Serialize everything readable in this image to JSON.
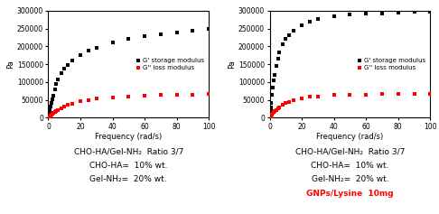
{
  "chart_data": [
    {
      "type": "scatter",
      "x_label": "Frequency (rad/s)",
      "y_label": "Pa",
      "x": [
        0.1,
        0.2,
        0.3,
        0.5,
        0.7,
        1.0,
        1.5,
        2.0,
        2.5,
        3.0,
        4.0,
        5.0,
        6.0,
        8.0,
        10,
        12,
        15,
        20,
        25,
        30,
        40,
        50,
        60,
        70,
        80,
        90,
        100
      ],
      "series": [
        {
          "name": "G' storage modulus",
          "color": "black",
          "marker": "square",
          "values": [
            2000,
            4000,
            6000,
            10000,
            14000,
            20000,
            32000,
            42000,
            52000,
            62000,
            80000,
            95000,
            108000,
            125000,
            138000,
            148000,
            160000,
            175000,
            188000,
            197000,
            210000,
            220000,
            228000,
            233000,
            240000,
            245000,
            248000
          ]
        },
        {
          "name": "G'' loss modulus",
          "color": "red",
          "marker": "square",
          "values": [
            500,
            1000,
            1400,
            2200,
            3000,
            4500,
            6500,
            8500,
            10500,
            12500,
            16000,
            19000,
            22000,
            27000,
            32000,
            36000,
            40000,
            46000,
            50000,
            53000,
            57000,
            60000,
            62000,
            63000,
            64000,
            65000,
            66000
          ]
        }
      ],
      "xlim": [
        0,
        100
      ],
      "xticks": [
        0,
        20,
        40,
        60,
        80,
        100
      ],
      "ylim": [
        0,
        300000
      ],
      "yticks": [
        0,
        50000,
        100000,
        150000,
        200000,
        250000,
        300000
      ],
      "legend": "center right",
      "annotations": [
        {
          "text": "CHO-HA/Gel-NH₂  Ratio 3/7"
        },
        {
          "text": "CHO-HA=  10% wt."
        },
        {
          "text": "Gel-NH₂=  20% wt."
        }
      ]
    },
    {
      "type": "scatter",
      "x_label": "Frequency (rad/s)",
      "y_label": "Pa",
      "x": [
        0.1,
        0.2,
        0.3,
        0.5,
        0.7,
        1.0,
        1.5,
        2.0,
        2.5,
        3.0,
        4.0,
        5.0,
        6.0,
        8.0,
        10,
        12,
        15,
        20,
        25,
        30,
        40,
        50,
        60,
        70,
        80,
        90,
        100
      ],
      "series": [
        {
          "name": "G' storage modulus",
          "color": "black",
          "marker": "square",
          "values": [
            3000,
            7000,
            12000,
            20000,
            28000,
            42000,
            65000,
            85000,
            105000,
            120000,
            145000,
            165000,
            182000,
            205000,
            220000,
            232000,
            245000,
            260000,
            270000,
            278000,
            285000,
            290000,
            292000,
            293000,
            295000,
            296000,
            297000
          ]
        },
        {
          "name": "G'' loss modulus",
          "color": "red",
          "marker": "square",
          "values": [
            700,
            1400,
            2000,
            3200,
            4500,
            6500,
            9500,
            12500,
            15000,
            18000,
            22000,
            26000,
            30000,
            36000,
            41000,
            45000,
            50000,
            55000,
            58000,
            60000,
            63000,
            64000,
            65000,
            65500,
            66000,
            66500,
            67000
          ]
        }
      ],
      "xlim": [
        0,
        100
      ],
      "xticks": [
        0,
        20,
        40,
        60,
        80,
        100
      ],
      "ylim": [
        0,
        300000
      ],
      "yticks": [
        0,
        50000,
        100000,
        150000,
        200000,
        250000,
        300000
      ],
      "legend": "center right",
      "annotations": [
        {
          "text": "CHO-HA/Gel-NH₂  Ratio 3/7"
        },
        {
          "text": "CHO-HA=  10% wt."
        },
        {
          "text": "Gel-NH₂=  20% wt."
        },
        {
          "text": "GNPs/Lysine  10mg",
          "color": "red"
        }
      ]
    }
  ]
}
